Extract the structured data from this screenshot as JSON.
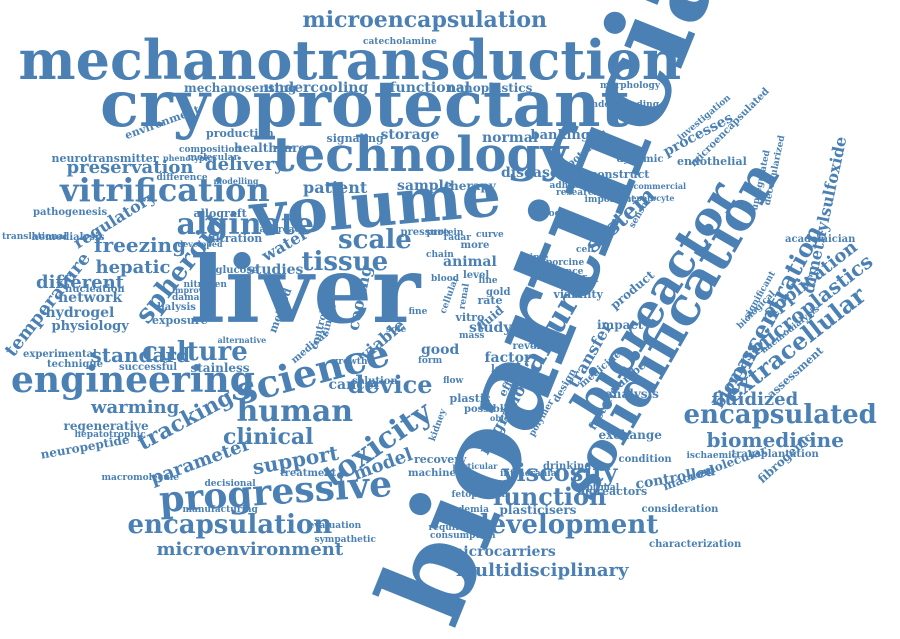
{
  "colors": {
    "word": "#4a80b4",
    "background": "#ffffff"
  },
  "words": [
    "bioartificial",
    "liver",
    "cryoprotectant",
    "mechanotransduction",
    "technology",
    "volume",
    "solidification",
    "bioreactor",
    "microencapsulation",
    "vitrification",
    "alginate",
    "engineering",
    "science",
    "progressive",
    "encapsulation",
    "development",
    "human",
    "toxicity",
    "failure",
    "encapsulated",
    "microenvironment",
    "multidisciplinary",
    "tissue",
    "scale",
    "culture",
    "spheroid",
    "viscosity",
    "function",
    "concentration",
    "biomedicine",
    "extracellular",
    "microplastics",
    "application",
    "fluidized",
    "dimethylsulfoxide",
    "system",
    "device",
    "tracking",
    "clinical",
    "support",
    "model",
    "temperature",
    "freezing",
    "regulatory",
    "hepatic",
    "different",
    "network",
    "hydrogel",
    "physiology",
    "standard",
    "warming",
    "parameter",
    "regenerative",
    "neuropeptide",
    "preservation",
    "delivery",
    "patient",
    "sample",
    "therapy",
    "storage",
    "normal",
    "banking",
    "disease",
    "processes",
    "biomass",
    "microcarriers",
    "plasticisers",
    "controlled",
    "macromolecular",
    "fibrogenic",
    "migration",
    "transfer",
    "factor",
    "study",
    "water",
    "cooling",
    "studies",
    "cancer",
    "animal",
    "undercooling",
    "mechanosensing",
    "functional",
    "nanoplastics",
    "healthcare",
    "signaling",
    "production",
    "environment",
    "neurotransmitter",
    "pathogenesis",
    "hemodialysis",
    "nucleation",
    "exposure",
    "dialysis",
    "experimental",
    "technique",
    "successful",
    "stainless",
    "allograft",
    "filtration",
    "pressure",
    "glucose",
    "nitrogen",
    "damage",
    "improved",
    "viable",
    "good",
    "fluid",
    "rate",
    "viability",
    "analysis",
    "exchange",
    "condition",
    "factories",
    "impact",
    "product",
    "transplantation",
    "ischaemic",
    "characterization",
    "academician",
    "consideration",
    "bioreactors",
    "optimal",
    "intracranial",
    "fetoprotein",
    "academia",
    "requirement",
    "consumption",
    "sympathetic",
    "evaluation",
    "manufacturing",
    "hepatotrophic",
    "macromolecule",
    "decisional",
    "treatment",
    "recovery",
    "machine",
    "solution",
    "plastic",
    "possible",
    "larger",
    "drinking",
    "reverse",
    "construct",
    "endothelial",
    "microencapsulated",
    "morphology",
    "catecholamine",
    "dynamic",
    "potential",
    "research",
    "biology",
    "composition",
    "molecular",
    "assessment",
    "haemodialysis",
    "biological",
    "significant",
    "translational",
    "developed",
    "approach",
    "protein",
    "growth",
    "more",
    "chain",
    "investigation",
    "understanding",
    "hepatocyte",
    "adhesion",
    "important",
    "porcine",
    "enhance",
    "radar",
    "curve",
    "alternative",
    "difference",
    "phenotypic",
    "modelling",
    "method",
    "medical",
    "control",
    "single",
    "effect",
    "sensor",
    "commercial",
    "upregulated",
    "decellularized",
    "medicine",
    "number",
    "design",
    "testing",
    "objective",
    "particular",
    "kidney",
    "polymer",
    "cellular",
    "renal",
    "vitro",
    "blood",
    "inhibitor",
    "gold",
    "level",
    "mass",
    "time",
    "fine",
    "sole",
    "cell",
    "work",
    "form",
    "flow",
    "line"
  ]
}
